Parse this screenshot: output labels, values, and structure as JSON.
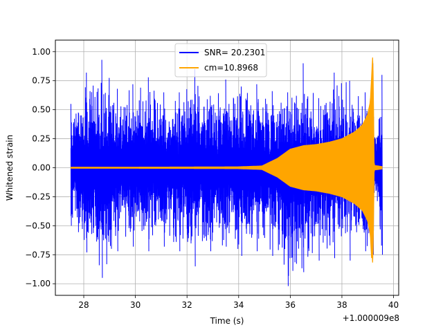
{
  "chart_data": {
    "type": "line",
    "title": "",
    "xlabel": "Time (s)",
    "ylabel": "Whitened strain",
    "x_offset_label": "+1.000009e8",
    "xlim": [
      26.9,
      40.2
    ],
    "ylim": [
      -1.1,
      1.1
    ],
    "x_ticks": [
      28,
      30,
      32,
      34,
      36,
      38,
      40
    ],
    "y_ticks": [
      -1.0,
      -0.75,
      -0.5,
      -0.25,
      0.0,
      0.25,
      0.5,
      0.75,
      1.0
    ],
    "x_tick_labels": [
      "28",
      "30",
      "32",
      "34",
      "36",
      "38",
      "40"
    ],
    "y_tick_labels": [
      "−1.00",
      "−0.75",
      "−0.50",
      "−0.25",
      "0.00",
      "0.25",
      "0.50",
      "0.75",
      "1.00"
    ],
    "grid": true,
    "legend_position": "top-center",
    "series": [
      {
        "name": "SNR= 20.2301",
        "color": "#0000ff",
        "description_envelope": {
          "x": [
            27.5,
            28.1,
            28.7,
            29.3,
            29.9,
            30.5,
            31.1,
            31.7,
            32.3,
            32.9,
            33.5,
            34.1,
            34.7,
            35.3,
            35.9,
            36.5,
            37.1,
            37.7,
            38.3,
            38.9,
            39.2,
            39.3,
            39.55
          ],
          "upper": [
            0.55,
            0.82,
            0.93,
            0.68,
            0.72,
            0.78,
            0.65,
            0.65,
            0.85,
            0.62,
            0.76,
            0.7,
            0.72,
            0.66,
            0.65,
            0.9,
            0.6,
            0.82,
            0.75,
            0.65,
            0.9,
            0.25,
            0.8
          ],
          "lower": [
            -0.5,
            -0.73,
            -0.95,
            -0.72,
            -0.68,
            -0.72,
            -0.68,
            -0.72,
            -0.85,
            -0.72,
            -0.68,
            -0.76,
            -0.72,
            -0.76,
            -1.02,
            -0.9,
            -0.8,
            -0.78,
            -0.8,
            -0.72,
            -0.75,
            -0.2,
            -0.75
          ]
        }
      },
      {
        "name": "cm=10.8968",
        "color": "#ffa500",
        "description_envelope": {
          "x": [
            27.5,
            30.0,
            32.0,
            34.0,
            34.9,
            35.5,
            36.0,
            36.5,
            37.0,
            37.5,
            38.0,
            38.5,
            38.8,
            39.0,
            39.1,
            39.2,
            39.25,
            39.55
          ],
          "amplitude": [
            0.005,
            0.005,
            0.006,
            0.008,
            0.015,
            0.08,
            0.16,
            0.19,
            0.2,
            0.22,
            0.25,
            0.31,
            0.37,
            0.46,
            0.57,
            1.0,
            0.02,
            0.01
          ]
        }
      }
    ]
  }
}
